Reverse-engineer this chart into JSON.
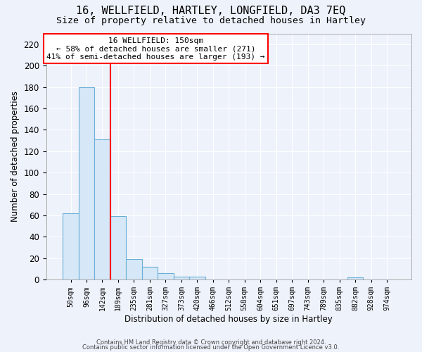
{
  "title1": "16, WELLFIELD, HARTLEY, LONGFIELD, DA3 7EQ",
  "title2": "Size of property relative to detached houses in Hartley",
  "xlabel": "Distribution of detached houses by size in Hartley",
  "ylabel": "Number of detached properties",
  "categories": [
    "50sqm",
    "96sqm",
    "142sqm",
    "189sqm",
    "235sqm",
    "281sqm",
    "327sqm",
    "373sqm",
    "420sqm",
    "466sqm",
    "512sqm",
    "558sqm",
    "604sqm",
    "651sqm",
    "697sqm",
    "743sqm",
    "789sqm",
    "835sqm",
    "882sqm",
    "928sqm",
    "974sqm"
  ],
  "bar_heights": [
    62,
    180,
    131,
    59,
    19,
    12,
    6,
    3,
    3,
    0,
    0,
    0,
    0,
    0,
    0,
    0,
    0,
    0,
    2,
    0,
    0
  ],
  "bar_color": "#d6e8f7",
  "bar_edge_color": "#6aaed6",
  "red_line_index": 2,
  "ylim": [
    0,
    230
  ],
  "yticks": [
    0,
    20,
    40,
    60,
    80,
    100,
    120,
    140,
    160,
    180,
    200,
    220
  ],
  "annotation_line1": "16 WELLFIELD: 150sqm",
  "annotation_line2": "← 58% of detached houses are smaller (271)",
  "annotation_line3": "41% of semi-detached houses are larger (193) →",
  "footer_line1": "Contains HM Land Registry data © Crown copyright and database right 2024.",
  "footer_line2": "Contains public sector information licensed under the Open Government Licence v3.0.",
  "background_color": "#eef2fb",
  "grid_color": "#ffffff",
  "title1_fontsize": 11,
  "title2_fontsize": 9.5,
  "ann_fontsize": 8,
  "xlabel_fontsize": 8.5,
  "ylabel_fontsize": 8.5
}
